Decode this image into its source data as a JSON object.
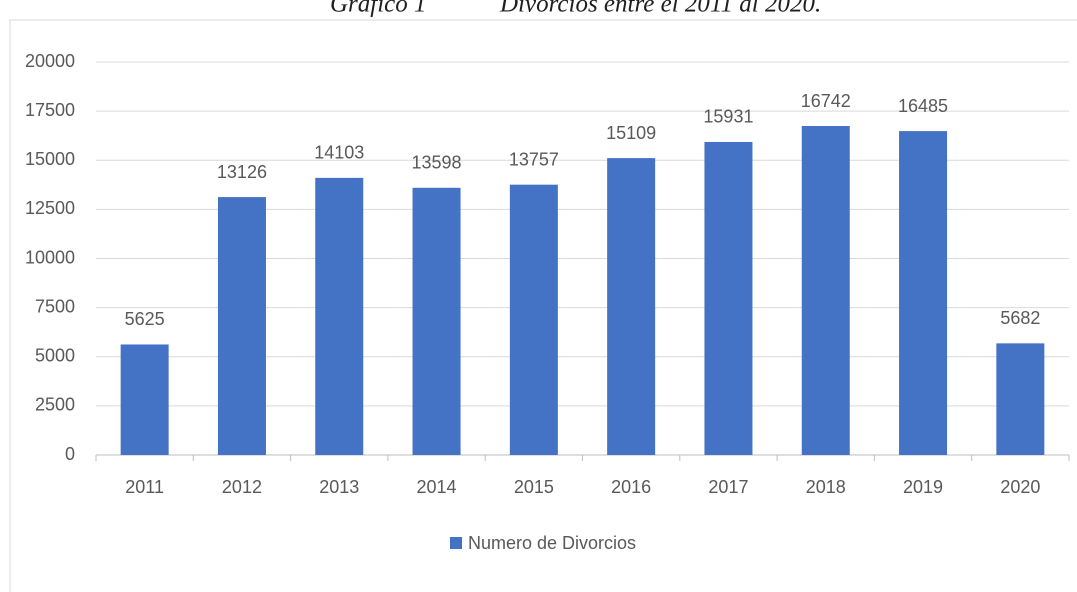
{
  "chart_data": {
    "type": "bar",
    "title": "Gráfico 1",
    "subtitle": "Divorcios entre el 2011 al 2020.",
    "categories": [
      "2011",
      "2012",
      "2013",
      "2014",
      "2015",
      "2016",
      "2017",
      "2018",
      "2019",
      "2020"
    ],
    "series": [
      {
        "name": "Numero de Divorcios",
        "color": "#4472c4",
        "values": [
          5625,
          13126,
          14103,
          13598,
          13757,
          15109,
          15931,
          16742,
          16485,
          5682
        ]
      }
    ],
    "ylim": [
      0,
      20000
    ],
    "yticks": [
      0,
      2500,
      5000,
      7500,
      10000,
      12500,
      15000,
      17500,
      20000
    ],
    "grid": true,
    "legend": "bottom"
  }
}
